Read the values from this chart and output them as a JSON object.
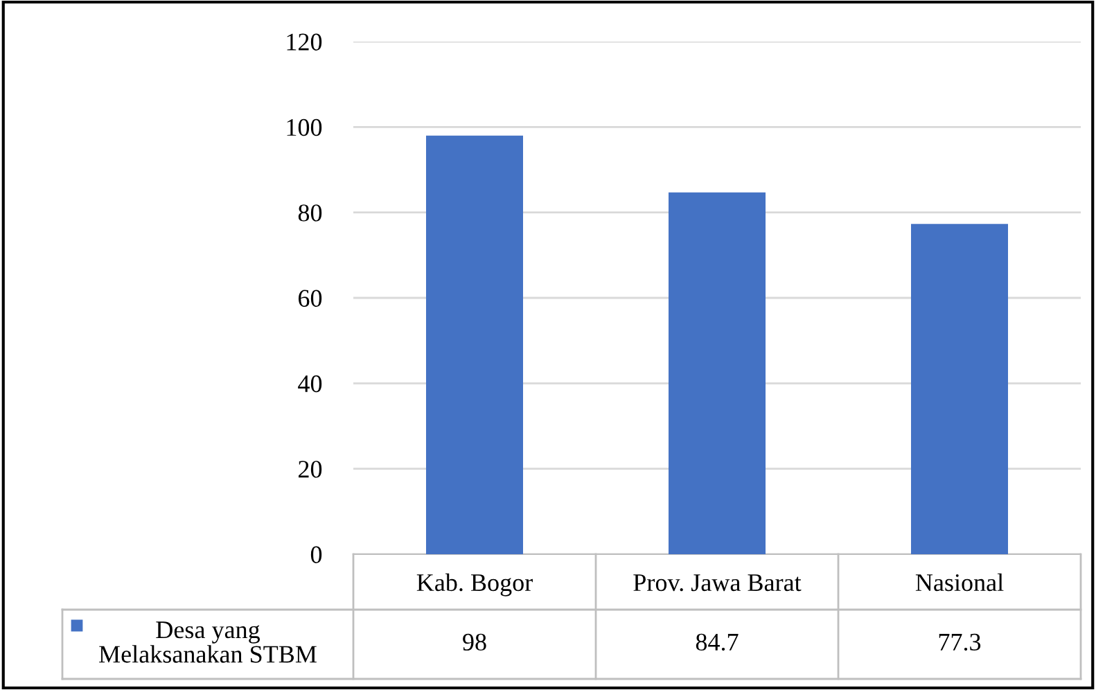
{
  "chart_data": {
    "type": "bar",
    "categories": [
      "Kab. Bogor",
      "Prov. Jawa Barat",
      "Nasional"
    ],
    "series": [
      {
        "name": "Desa yang\nMelaksanakan STBM",
        "color": "#4472c4",
        "values": [
          98,
          84.7,
          77.3
        ]
      }
    ],
    "ylim": [
      0,
      120
    ],
    "yticks": [
      0,
      20,
      40,
      60,
      80,
      100,
      120
    ],
    "grid": "y",
    "legend": "bottom",
    "data_labels": true
  }
}
